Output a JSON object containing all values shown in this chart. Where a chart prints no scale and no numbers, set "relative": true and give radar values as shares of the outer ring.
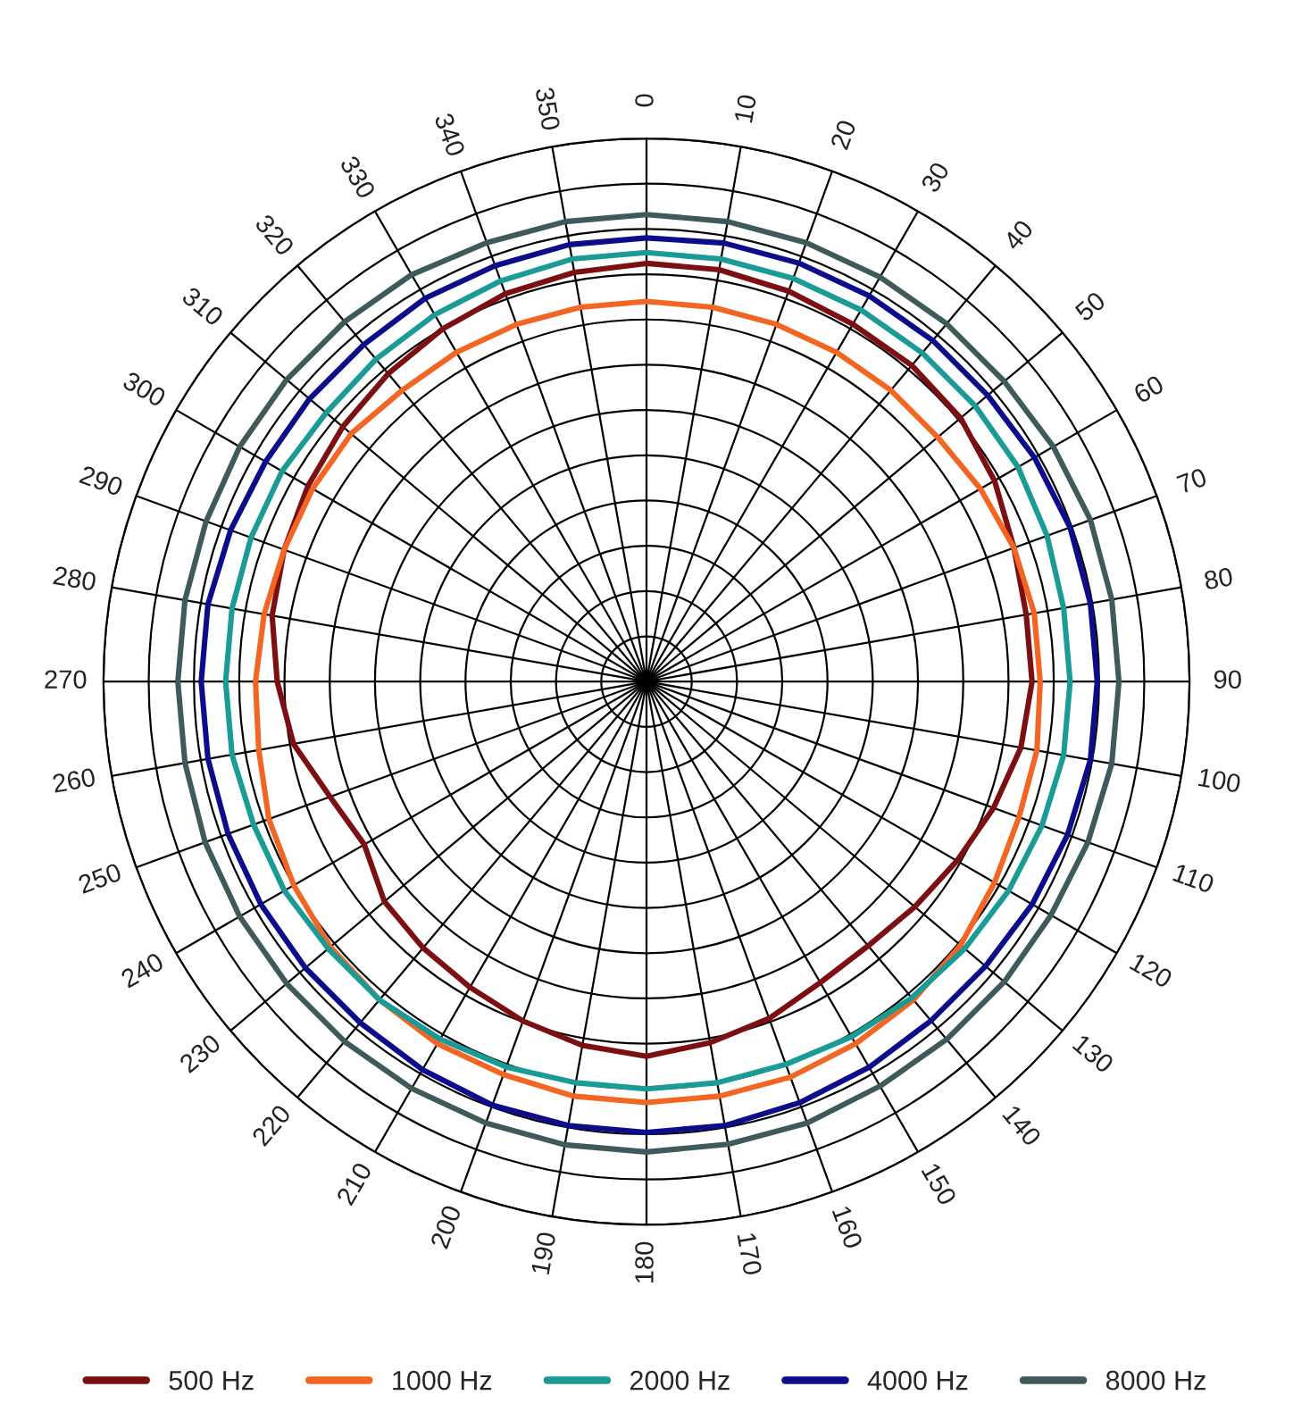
{
  "chart_data": {
    "type": "radar",
    "relative": true,
    "grid": true,
    "legend": "bottom",
    "categories": [
      "0",
      "10",
      "20",
      "30",
      "40",
      "50",
      "60",
      "70",
      "80",
      "90",
      "100",
      "110",
      "120",
      "130",
      "140",
      "150",
      "160",
      "170",
      "180",
      "190",
      "200",
      "210",
      "220",
      "230",
      "240",
      "250",
      "260",
      "270",
      "280",
      "290",
      "300",
      "310",
      "320",
      "330",
      "340",
      "350"
    ],
    "series": [
      {
        "name": "500 Hz",
        "color": "#7b0f12",
        "values": [
          0.77,
          0.77,
          0.765,
          0.76,
          0.76,
          0.755,
          0.74,
          0.72,
          0.71,
          0.71,
          0.7,
          0.68,
          0.66,
          0.645,
          0.635,
          0.64,
          0.66,
          0.675,
          0.69,
          0.68,
          0.665,
          0.65,
          0.64,
          0.63,
          0.6,
          0.62,
          0.66,
          0.68,
          0.7,
          0.71,
          0.72,
          0.73,
          0.74,
          0.75,
          0.76,
          0.765
        ]
      },
      {
        "name": "1000 Hz",
        "color": "#f26522",
        "values": [
          0.7,
          0.7,
          0.7,
          0.7,
          0.7,
          0.7,
          0.71,
          0.72,
          0.725,
          0.725,
          0.73,
          0.73,
          0.74,
          0.755,
          0.765,
          0.77,
          0.775,
          0.775,
          0.775,
          0.775,
          0.77,
          0.77,
          0.765,
          0.76,
          0.75,
          0.74,
          0.725,
          0.72,
          0.715,
          0.71,
          0.71,
          0.71,
          0.7,
          0.7,
          0.7,
          0.7
        ]
      },
      {
        "name": "2000 Hz",
        "color": "#1a9b96",
        "values": [
          0.79,
          0.79,
          0.79,
          0.79,
          0.79,
          0.79,
          0.79,
          0.785,
          0.78,
          0.78,
          0.78,
          0.775,
          0.77,
          0.765,
          0.76,
          0.755,
          0.75,
          0.75,
          0.75,
          0.75,
          0.755,
          0.76,
          0.765,
          0.765,
          0.77,
          0.77,
          0.775,
          0.775,
          0.775,
          0.775,
          0.775,
          0.77,
          0.775,
          0.78,
          0.785,
          0.79
        ]
      },
      {
        "name": "4000 Hz",
        "color": "#0d0d8c",
        "values": [
          0.817,
          0.82,
          0.82,
          0.82,
          0.82,
          0.82,
          0.825,
          0.83,
          0.83,
          0.83,
          0.83,
          0.825,
          0.82,
          0.815,
          0.815,
          0.82,
          0.825,
          0.83,
          0.83,
          0.83,
          0.83,
          0.825,
          0.82,
          0.82,
          0.82,
          0.82,
          0.82,
          0.82,
          0.82,
          0.815,
          0.81,
          0.81,
          0.81,
          0.815,
          0.815,
          0.817
        ]
      },
      {
        "name": "8000 Hz",
        "color": "#3f5a5a",
        "values": [
          0.86,
          0.86,
          0.86,
          0.86,
          0.86,
          0.86,
          0.865,
          0.87,
          0.87,
          0.87,
          0.87,
          0.865,
          0.86,
          0.86,
          0.86,
          0.86,
          0.865,
          0.865,
          0.866,
          0.866,
          0.865,
          0.865,
          0.865,
          0.865,
          0.865,
          0.865,
          0.863,
          0.863,
          0.863,
          0.863,
          0.865,
          0.865,
          0.865,
          0.865,
          0.86,
          0.86
        ]
      }
    ]
  }
}
